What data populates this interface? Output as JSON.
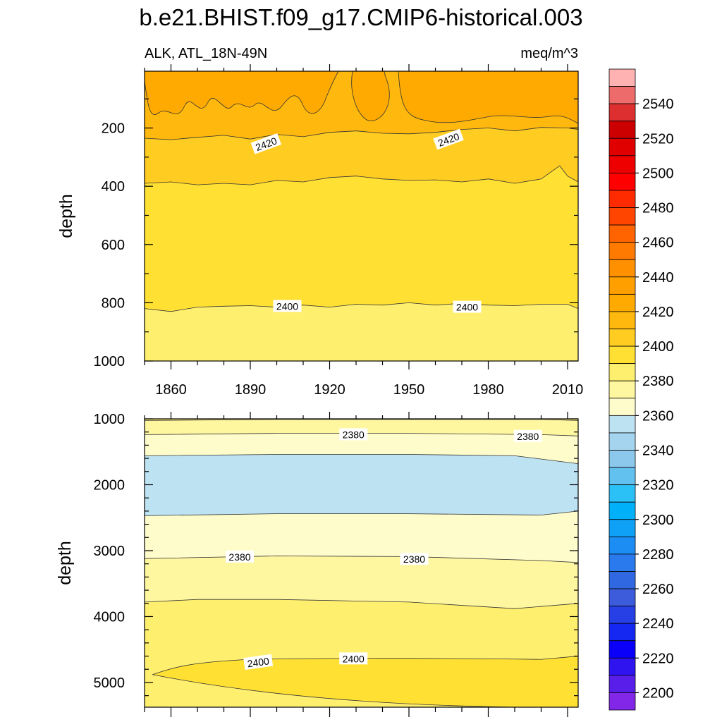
{
  "figure": {
    "title": "b.e21.BHIST.f09_g17.CMIP6-historical.003",
    "variable_label": "ALK, ATL_18N-49N",
    "units_label": "meq/m^3"
  },
  "chart_data": [
    {
      "type": "heatmap",
      "panel": "upper",
      "ylabel": "depth",
      "x_ticks": [
        1860,
        1890,
        1920,
        1950,
        1980,
        2010
      ],
      "y_ticks": [
        200,
        400,
        600,
        800,
        1000
      ],
      "xlim": [
        1850,
        2014
      ],
      "ylim": [
        1000,
        5
      ],
      "contour_labels": [
        {
          "text": "2420",
          "x": 1896,
          "y": 255
        },
        {
          "text": "2420",
          "x": 1965,
          "y": 240
        },
        {
          "text": "2400",
          "x": 1904,
          "y": 812
        },
        {
          "text": "2400",
          "x": 1972,
          "y": 815
        }
      ],
      "contours": [
        {
          "value": 2420,
          "x": [
            1850,
            1860,
            1870,
            1880,
            1890,
            1900,
            1910,
            1920,
            1930,
            1940,
            1950,
            1960,
            1970,
            1980,
            1990,
            2000,
            2010,
            2014
          ],
          "y": [
            235,
            240,
            232,
            225,
            238,
            222,
            230,
            215,
            210,
            218,
            220,
            215,
            205,
            200,
            210,
            198,
            200,
            205
          ]
        },
        {
          "value": 2410,
          "x": [
            1850,
            1860,
            1870,
            1880,
            1890,
            1900,
            1910,
            1920,
            1930,
            1940,
            1950,
            1960,
            1970,
            1980,
            1990,
            2000,
            2007,
            2010,
            2014
          ],
          "y": [
            390,
            385,
            395,
            390,
            395,
            380,
            385,
            370,
            365,
            375,
            380,
            378,
            385,
            375,
            390,
            375,
            330,
            365,
            385
          ]
        },
        {
          "value": 2400,
          "x": [
            1850,
            1860,
            1870,
            1880,
            1890,
            1900,
            1910,
            1920,
            1930,
            1940,
            1950,
            1960,
            1970,
            1980,
            1990,
            2000,
            2010,
            2014
          ],
          "y": [
            820,
            830,
            815,
            812,
            810,
            815,
            808,
            815,
            805,
            808,
            800,
            808,
            802,
            808,
            810,
            805,
            805,
            820
          ]
        }
      ],
      "bands": [
        {
          "color": "#FFEF6E",
          "lower": 2390,
          "upper": 2400
        },
        {
          "color": "#FFE033",
          "lower": 2400,
          "upper": 2410
        },
        {
          "color": "#FFCC22",
          "lower": 2410,
          "upper": 2420
        },
        {
          "color": "#FFB80E",
          "lower": 2420,
          "upper": 2430
        },
        {
          "color": "#FFAA00",
          "lower": 2430,
          "upper": 2440
        }
      ]
    },
    {
      "type": "heatmap",
      "panel": "lower",
      "ylabel": "depth",
      "y_ticks": [
        1000,
        2000,
        3000,
        4000,
        5000
      ],
      "xlim": [
        1850,
        2014
      ],
      "ylim": [
        5375,
        1000
      ],
      "contour_labels": [
        {
          "text": "2380",
          "x": 1929,
          "y": 1240
        },
        {
          "text": "2380",
          "x": 1995,
          "y": 1265
        },
        {
          "text": "2380",
          "x": 1886,
          "y": 3095
        },
        {
          "text": "2380",
          "x": 1952,
          "y": 3130
        },
        {
          "text": "2400",
          "x": 1893,
          "y": 4695
        },
        {
          "text": "2400",
          "x": 1929,
          "y": 4640
        }
      ],
      "contours": [
        {
          "value": 2390,
          "x": [
            1850,
            1900,
            1950,
            2000,
            2014
          ],
          "y": [
            1025,
            1010,
            1010,
            1010,
            1025
          ]
        },
        {
          "value": 2380,
          "x": [
            1850,
            1900,
            1950,
            2000,
            2014
          ],
          "y": [
            1240,
            1220,
            1220,
            1240,
            1260
          ]
        },
        {
          "value": 2370,
          "x": [
            1850,
            1900,
            1950,
            1990,
            2014
          ],
          "y": [
            1560,
            1540,
            1540,
            1560,
            1680
          ]
        },
        {
          "value": 2370,
          "x": [
            1850,
            1900,
            1950,
            2000,
            2014
          ],
          "y": [
            2470,
            2440,
            2440,
            2460,
            2400
          ]
        },
        {
          "value": 2380,
          "x": [
            1850,
            1900,
            1950,
            2000,
            2014
          ],
          "y": [
            3120,
            3080,
            3090,
            3150,
            3180
          ]
        },
        {
          "value": 2390,
          "x": [
            1850,
            1870,
            1900,
            1950,
            1990,
            2014
          ],
          "y": [
            3780,
            3740,
            3740,
            3780,
            3880,
            3800
          ]
        }
      ],
      "bands": [
        {
          "color": "#FFEF6E",
          "lower": 2390,
          "upper": 2400
        },
        {
          "color": "#FFF7A0",
          "lower": 2380,
          "upper": 2390
        },
        {
          "color": "#FFFCCB",
          "lower": 2370,
          "upper": 2380
        },
        {
          "color": "#BDE2F2",
          "lower": 2360,
          "upper": 2370
        },
        {
          "color": "#FFE033",
          "lower": 2400,
          "upper": 2410
        }
      ]
    },
    {
      "type": "colorbar",
      "labels": [
        2540,
        2520,
        2500,
        2480,
        2460,
        2440,
        2420,
        2400,
        2380,
        2360,
        2340,
        2320,
        2300,
        2280,
        2260,
        2240,
        2220,
        2200
      ],
      "colors_top_to_bottom": [
        "#FFB2B2",
        "#EE6B6B",
        "#DD2F2F",
        "#CC0000",
        "#E00000",
        "#EE0000",
        "#FF0000",
        "#FF2B00",
        "#FF4500",
        "#FF6400",
        "#FF7A00",
        "#FF9000",
        "#FF9F00",
        "#FFAA00",
        "#FFB80E",
        "#FFCC22",
        "#FFE033",
        "#FFEF6E",
        "#FFF7A0",
        "#FFFCCB",
        "#BDE2F2",
        "#A4D4EE",
        "#8CC8EC",
        "#63C1F0",
        "#2CC1F6",
        "#00B1FA",
        "#0EA1F6",
        "#1C8EF3",
        "#2A7AEE",
        "#3068E2",
        "#3C5CDC",
        "#2640E6",
        "#1428F2",
        "#0A00FA",
        "#3014F0",
        "#5A1EEA",
        "#8226E8"
      ]
    }
  ]
}
